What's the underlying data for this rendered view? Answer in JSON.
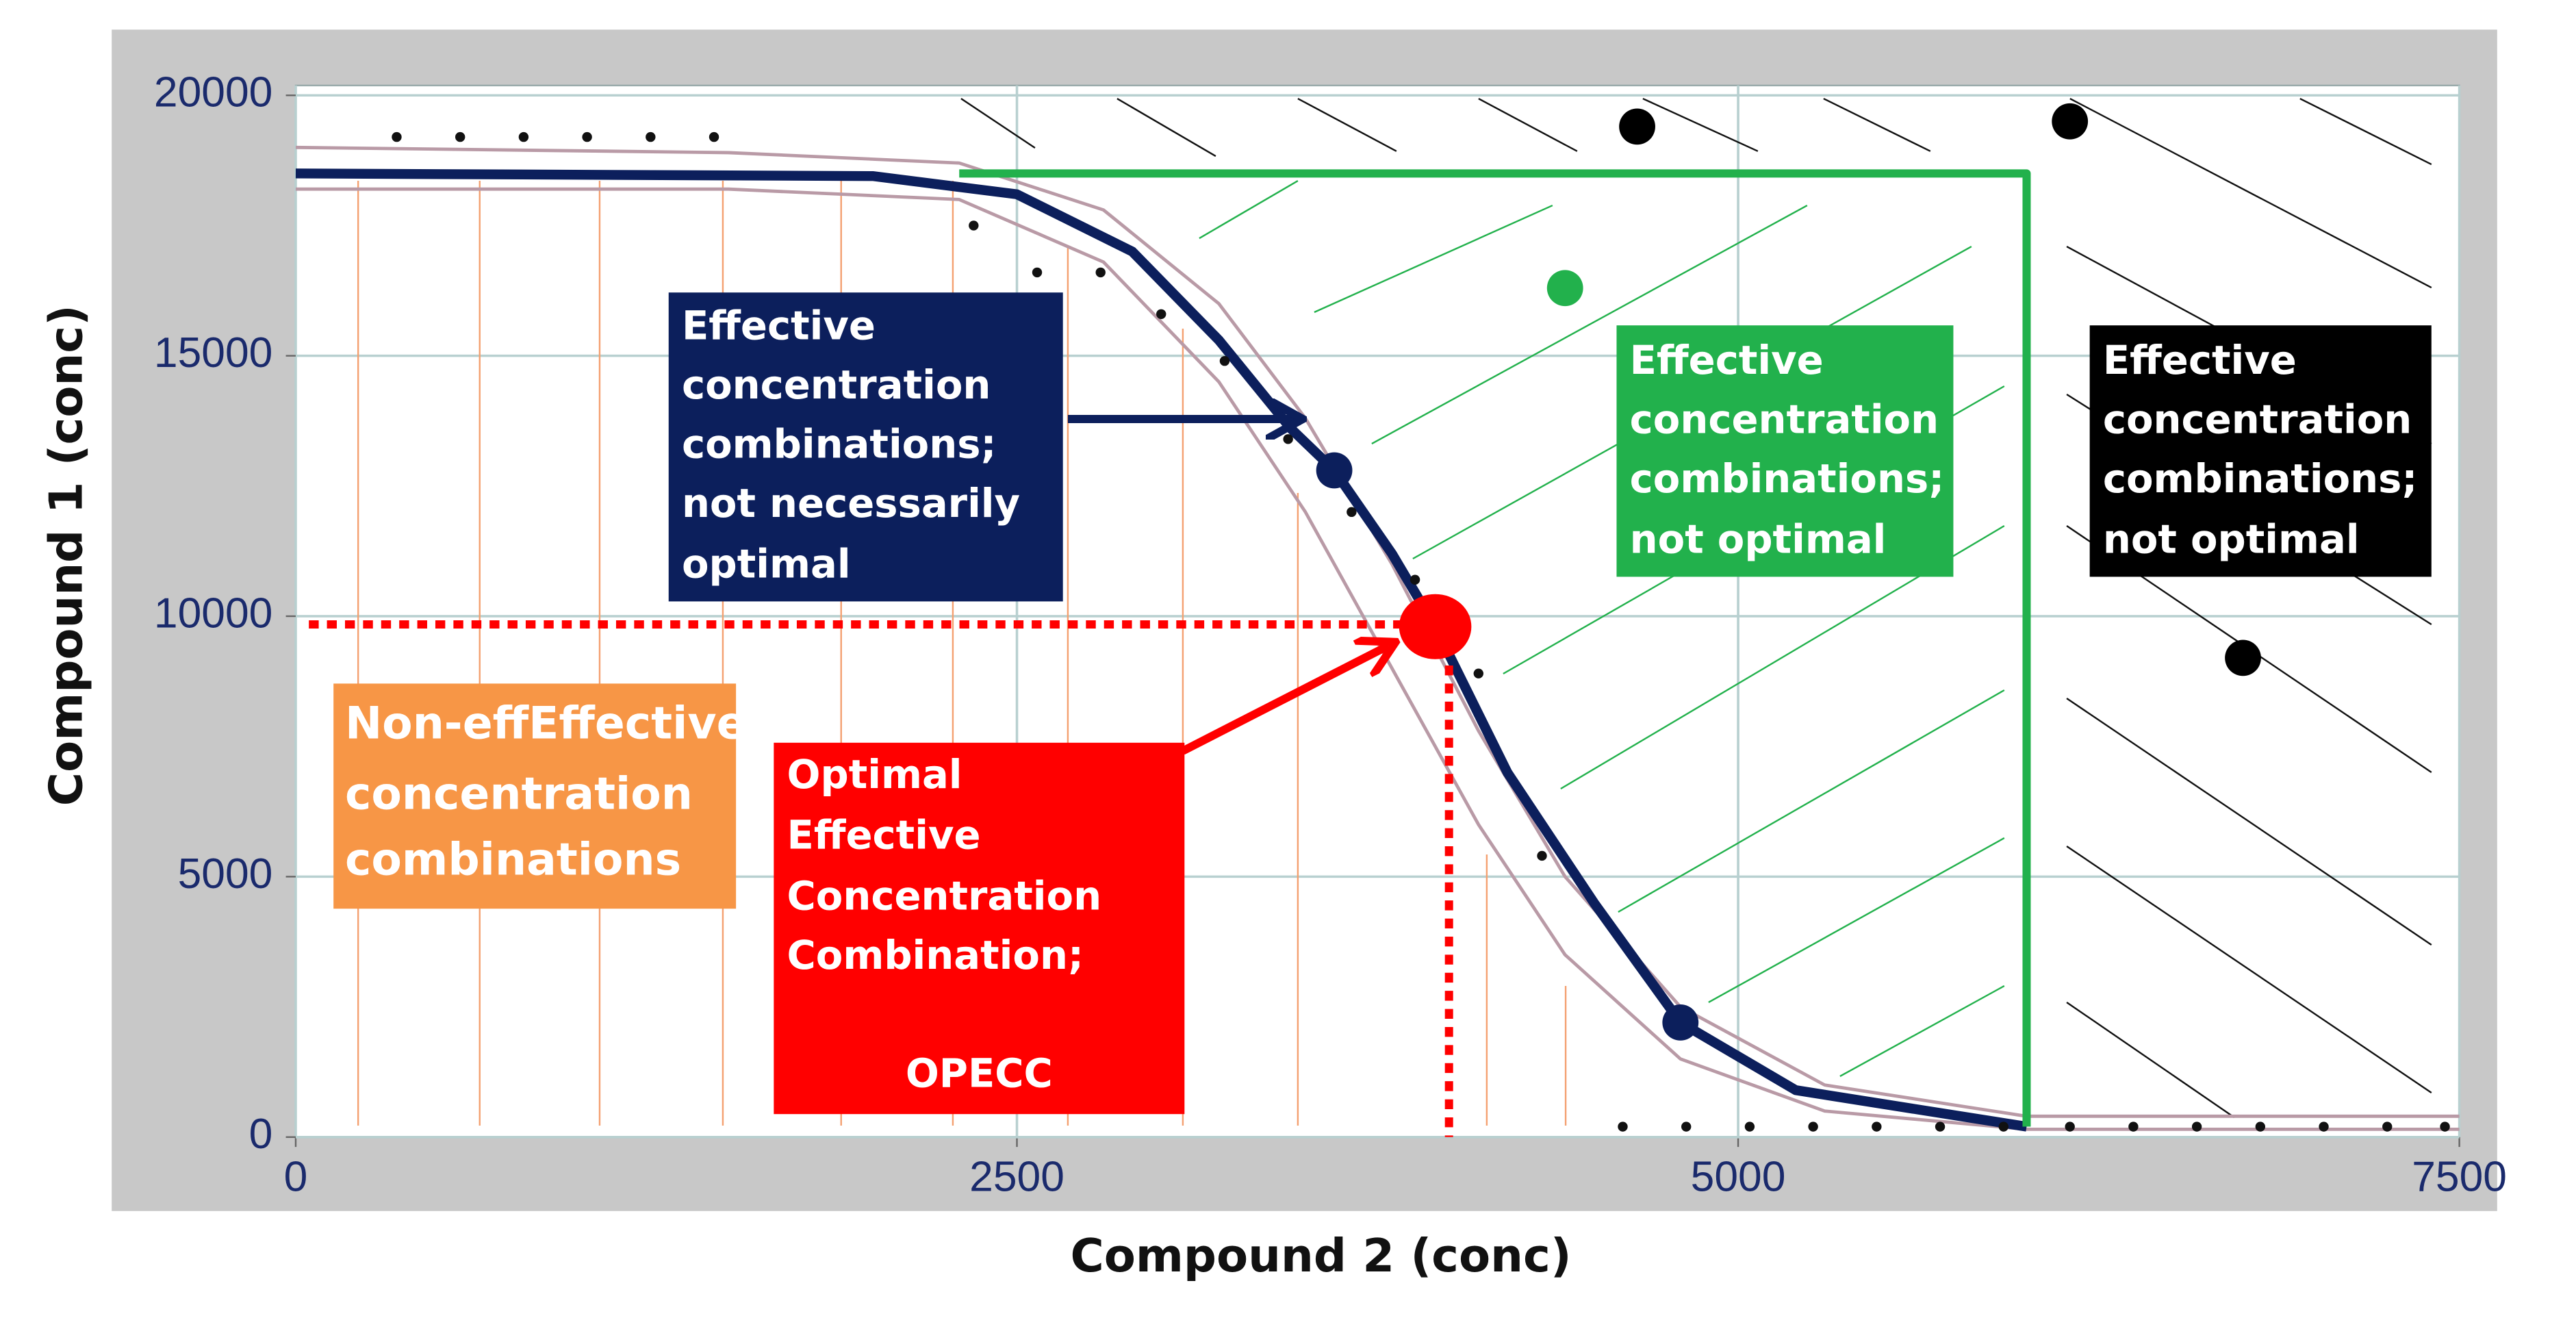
{
  "chart_data": {
    "type": "line",
    "x_label": "Compound 2 (conc)",
    "y_label": "Compound 1 (conc)",
    "xlim": [
      0,
      7500
    ],
    "xticks": [
      0,
      2500,
      5000,
      7500
    ],
    "ylim": [
      0,
      20000
    ],
    "yticks": [
      0,
      5000,
      10000,
      15000,
      20000
    ],
    "grid": true,
    "series": [
      {
        "kind": "line",
        "color": "#b99aa6",
        "width": 2,
        "x": [
          0,
          1500,
          2300,
          2800,
          3200,
          3500,
          3800,
          4100,
          4400,
          4800,
          5300,
          6000,
          7500
        ],
        "values": [
          19000,
          18900,
          18700,
          17800,
          16000,
          13800,
          11000,
          7800,
          5000,
          2500,
          1000,
          400,
          400
        ]
      },
      {
        "kind": "line",
        "color": "#b99aa6",
        "width": 2,
        "x": [
          0,
          1500,
          2300,
          2800,
          3200,
          3500,
          3800,
          4100,
          4400,
          4800,
          5300,
          6000,
          7500
        ],
        "values": [
          18200,
          18200,
          18000,
          16800,
          14500,
          12000,
          9000,
          6000,
          3500,
          1500,
          500,
          150,
          150
        ]
      },
      {
        "kind": "line",
        "color": "#0c1f5c",
        "width": 6,
        "x": [
          0,
          2000,
          2500,
          2900,
          3200,
          3450,
          3600,
          3800,
          3950,
          4200,
          4500,
          4800,
          5200,
          6000
        ],
        "values": [
          18500,
          18450,
          18100,
          17000,
          15300,
          13600,
          12800,
          11200,
          9800,
          7000,
          4500,
          2200,
          900,
          200
        ]
      },
      {
        "kind": "line",
        "color": "#22b14c",
        "width": 5,
        "x": [
          2300,
          6000,
          6000
        ],
        "values": [
          18500,
          18500,
          200
        ]
      },
      {
        "kind": "points",
        "color": "#111111",
        "r": 3,
        "x": [
          350,
          570,
          790,
          1010,
          1230,
          1450,
          2350,
          2570,
          2790,
          3000,
          3220,
          3440,
          3660,
          3880,
          4100,
          4320,
          4600,
          4820,
          5040,
          5260,
          5480,
          5700,
          5920,
          6150,
          6370,
          6590,
          6810,
          7030,
          7250,
          7450
        ],
        "values": [
          19200,
          19200,
          19200,
          19200,
          19200,
          19200,
          17500,
          16600,
          16600,
          15800,
          14900,
          13400,
          12000,
          10700,
          8900,
          5400,
          200,
          200,
          200,
          200,
          200,
          200,
          200,
          200,
          200,
          200,
          200,
          200,
          200,
          200
        ]
      },
      {
        "kind": "points",
        "color": "#000000",
        "r": 11,
        "x": [
          4650,
          6150,
          6750
        ],
        "values": [
          19400,
          19500,
          9200
        ]
      },
      {
        "kind": "points",
        "color": "#22b14c",
        "r": 11,
        "x": [
          4400
        ],
        "values": [
          16300
        ]
      },
      {
        "kind": "points",
        "color": "#0c1f5c",
        "r": 11,
        "x": [
          3600,
          4800
        ],
        "values": [
          12800,
          2200
        ]
      },
      {
        "kind": "points",
        "color": "#ff0000",
        "r": 22,
        "x": [
          3950
        ],
        "values": [
          9800
        ]
      }
    ],
    "annotations": [
      {
        "color": "#0c1f5c",
        "lines": [
          "Effective",
          "concentration",
          "combinations;",
          "not necessarily",
          "optimal"
        ]
      },
      {
        "color": "#22b14c",
        "lines": [
          "Effective",
          "concentration",
          "combinations;",
          "not optimal"
        ]
      },
      {
        "color": "#000000",
        "lines": [
          "Effective",
          "concentration",
          "combinations;",
          "not optimal"
        ]
      },
      {
        "color": "#f79646",
        "lines": [
          "Non-effEffective",
          "concentration",
          "combinations"
        ]
      },
      {
        "color": "#ff0000",
        "lines": [
          "Optimal",
          "Effective",
          "Concentration",
          "Combination;",
          "OPECC"
        ]
      }
    ]
  }
}
